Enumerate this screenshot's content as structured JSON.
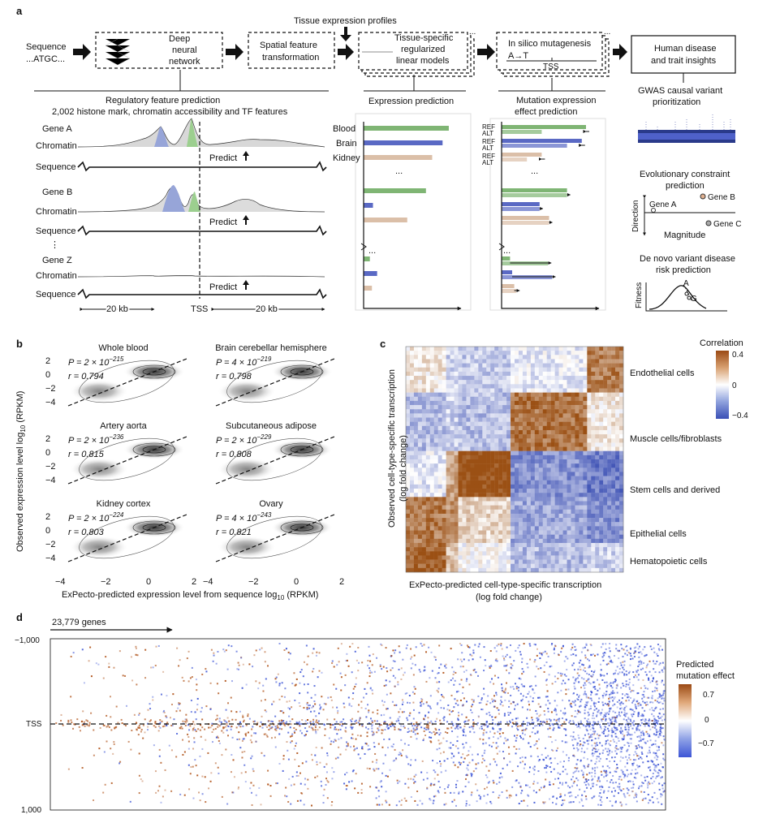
{
  "panels": {
    "a": "a",
    "b": "b",
    "c": "c",
    "d": "d"
  },
  "pipeline": {
    "sequence": "Sequence",
    "atgc": "...ATGC...",
    "dnn": [
      "Deep",
      "neural",
      "network"
    ],
    "spatial": [
      "Spatial feature",
      "transformation"
    ],
    "tissue_profiles": "Tissue expression profiles",
    "linear": [
      "Tissue-specific",
      "regularized",
      "linear models"
    ],
    "mutagenesis": "In silico mutagenesis",
    "mut_label": "A→T",
    "tss": "TSS",
    "insights": [
      "Human disease",
      "and trait insights"
    ],
    "dots": "..."
  },
  "regulatory": {
    "title": [
      "Regulatory feature prediction",
      "2,002 histone mark, chromatin accessibility and TF features"
    ],
    "gene_a": "Gene A",
    "gene_b": "Gene B",
    "gene_z": "Gene Z",
    "chromatin": "Chromatin",
    "sequence": "Sequence",
    "predict": "Predict",
    "vdots": "⋮",
    "scale_left": "20 kb",
    "scale_mid": "TSS",
    "scale_right": "20 kb"
  },
  "expression": {
    "title": "Expression prediction",
    "tissues": [
      "Blood",
      "Brain",
      "Kidney"
    ],
    "dots": "...",
    "colors": {
      "blood": "#7fb574",
      "brain": "#5a69c4",
      "kidney": "#dbbfa8"
    },
    "groups": [
      [
        0.82,
        0.76,
        0.66
      ],
      [
        0.6,
        0.09,
        0.42
      ],
      [
        0.06,
        0.13,
        0.08
      ]
    ]
  },
  "mutation": {
    "title": [
      "Mutation expression",
      "effect prediction"
    ],
    "ref": "REF",
    "alt": "ALT",
    "dots": "...",
    "groups": [
      [
        [
          0.8,
          0.38
        ],
        [
          0.76,
          0.62
        ],
        [
          0.38,
          0.24
        ]
      ],
      [
        [
          0.62,
          0.62
        ],
        [
          0.36,
          0.36
        ],
        [
          0.45,
          0.45
        ]
      ],
      [
        [
          0.08,
          0.44
        ],
        [
          0.1,
          0.48
        ],
        [
          0.12,
          0.14
        ]
      ]
    ]
  },
  "insights": {
    "gwas": [
      "GWAS causal variant",
      "prioritization"
    ],
    "evo": [
      "Evolutionary constraint",
      "prediction"
    ],
    "direction": "Direction",
    "magnitude": "Magnitude",
    "gene_a": "Gene A",
    "gene_b": "Gene B",
    "gene_c": "Gene C",
    "denovo": [
      "De novo variant disease",
      "risk prediction"
    ],
    "fitness": "Fitness",
    "a": "A",
    "g": "G"
  },
  "panel_b": {
    "ylabel": "Observed expression level log",
    "ylabel_sub": "10",
    "ylabel_end": " (RPKM)",
    "xlabel": "ExPecto-predicted expression level from sequence log",
    "xlabel_sub": "10",
    "xlabel_end": " (RPKM)",
    "yticks": [
      "2",
      "0",
      "−2",
      "−4"
    ],
    "xticks": [
      "−4",
      "−2",
      "0",
      "2"
    ],
    "plots": [
      {
        "title": "Whole blood",
        "p": "P = 2 × 10",
        "exp": "−215",
        "r": "r = 0.794"
      },
      {
        "title": "Brain cerebellar hemisphere",
        "p": "P = 4 × 10",
        "exp": "−219",
        "r": "r = 0.798"
      },
      {
        "title": "Artery aorta",
        "p": "P = 2 × 10",
        "exp": "−236",
        "r": "r = 0.815"
      },
      {
        "title": "Subcutaneous adipose",
        "p": "P =  2 × 10",
        "exp": "−229",
        "r": "r = 0.808"
      },
      {
        "title": "Kidney cortex",
        "p": "P = 2 × 10",
        "exp": "−224",
        "r": "r = 0.803"
      },
      {
        "title": "Ovary",
        "p": "P = 4 × 10",
        "exp": "−243",
        "r": "r = 0.821"
      }
    ]
  },
  "panel_c": {
    "ylabel": [
      "Observed cell-type-specific transcription",
      "(log fold change)"
    ],
    "xlabel": [
      "ExPecto-predicted cell-type-specific transcription",
      "(log fold change)"
    ],
    "legend_title": "Correlation",
    "legend_ticks": [
      "0.4",
      "0",
      "−0.4"
    ],
    "groups": [
      "Endothelial cells",
      "Muscle cells/fibroblasts",
      "Stem cells and derived",
      "Epithelial cells",
      "Hematopoietic cells"
    ]
  },
  "panel_d": {
    "genes": "23,779 genes",
    "yticks": [
      "−1,000",
      "TSS",
      "1,000"
    ],
    "legend_title": [
      "Predicted",
      "mutation effect"
    ],
    "legend_ticks": [
      "0.7",
      "0",
      "−0.7"
    ]
  }
}
